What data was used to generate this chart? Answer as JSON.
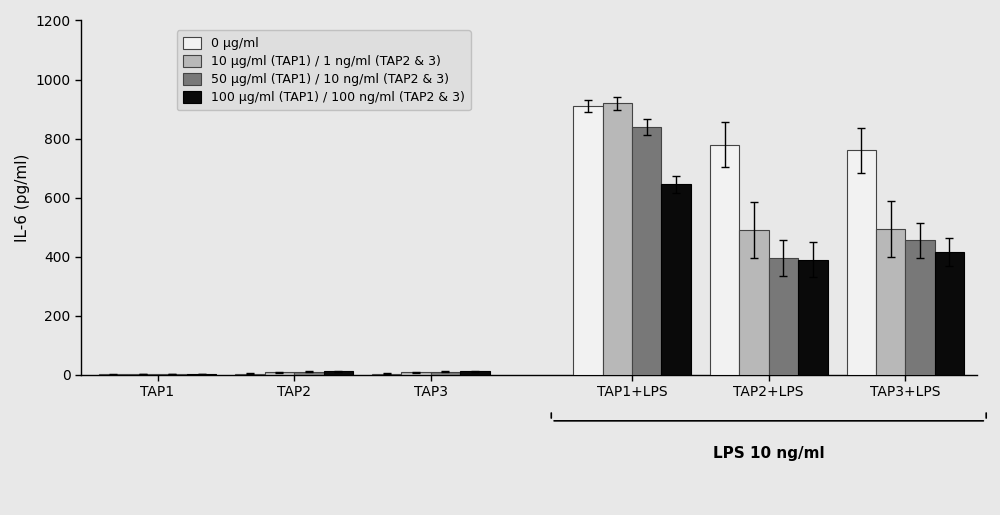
{
  "groups": [
    "TAP1",
    "TAP2",
    "TAP3",
    "TAP1+LPS",
    "TAP2+LPS",
    "TAP3+LPS"
  ],
  "bar_values": [
    [
      1,
      2,
      2,
      2
    ],
    [
      3,
      8,
      10,
      12
    ],
    [
      3,
      8,
      10,
      12
    ],
    [
      910,
      920,
      840,
      645
    ],
    [
      780,
      490,
      395,
      390
    ],
    [
      760,
      495,
      455,
      415
    ]
  ],
  "bar_errors": [
    [
      1,
      1,
      1,
      1
    ],
    [
      2,
      2,
      2,
      2
    ],
    [
      2,
      2,
      2,
      2
    ],
    [
      20,
      22,
      28,
      28
    ],
    [
      75,
      95,
      60,
      60
    ],
    [
      75,
      95,
      60,
      48
    ]
  ],
  "bar_colors": [
    "#f2f2f2",
    "#b8b8b8",
    "#787878",
    "#0a0a0a"
  ],
  "bar_edge_colors": [
    "#444444",
    "#444444",
    "#444444",
    "#000000"
  ],
  "legend_labels": [
    "0 μg/ml",
    "10 μg/ml (TAP1) / 1 ng/ml (TAP2 & 3)",
    "50 μg/ml (TAP1) / 10 ng/ml (TAP2 & 3)",
    "100 μg/ml (TAP1) / 100 ng/ml (TAP2 & 3)"
  ],
  "ylabel": "IL-6 (pg/ml)",
  "ylim": [
    0,
    1200
  ],
  "yticks": [
    0,
    200,
    400,
    600,
    800,
    1000,
    1200
  ],
  "group_labels": [
    "TAP1",
    "TAP2",
    "TAP3",
    "TAP1+LPS",
    "TAP2+LPS",
    "TAP3+LPS"
  ],
  "lps_label": "LPS 10 ng/ml",
  "background_color": "#e8e8e8",
  "bar_width": 0.2,
  "group_positions": [
    0.42,
    1.35,
    2.28,
    3.65,
    4.58,
    5.51
  ]
}
